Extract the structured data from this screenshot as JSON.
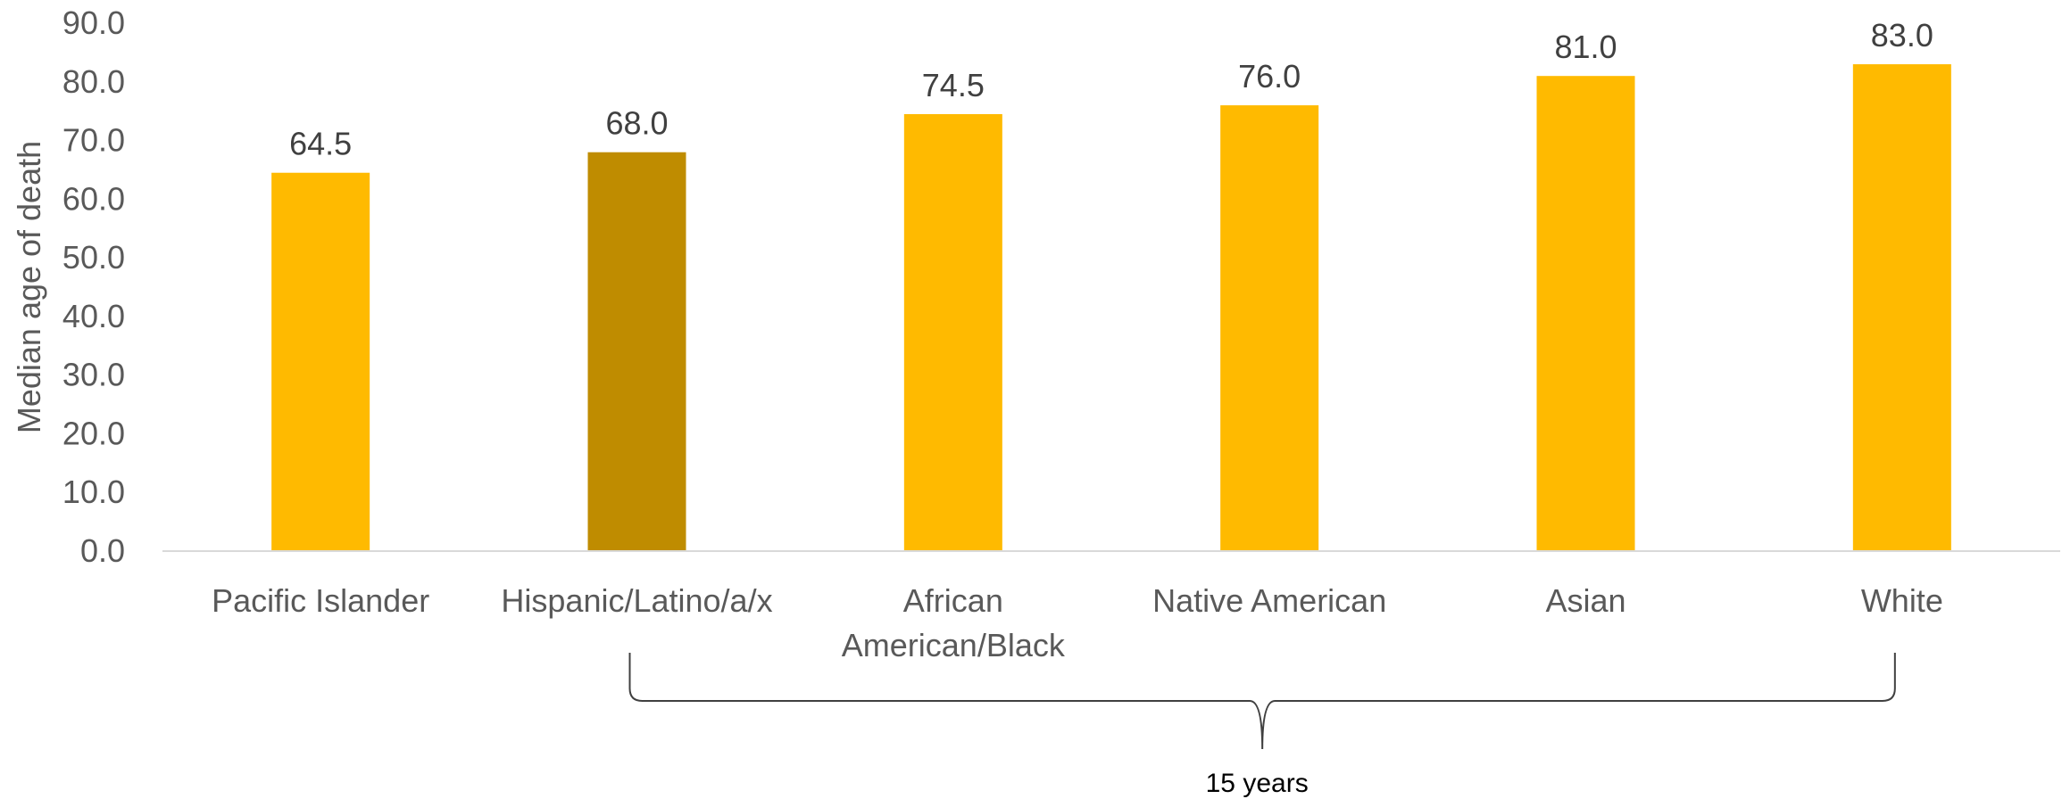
{
  "chart_data": {
    "type": "bar",
    "title": "",
    "xlabel": "",
    "ylabel": "Median age of death",
    "ylim": [
      0,
      90
    ],
    "y_ticks": [
      "0.0",
      "10.0",
      "20.0",
      "30.0",
      "40.0",
      "50.0",
      "60.0",
      "70.0",
      "80.0",
      "90.0"
    ],
    "categories": [
      [
        "Pacific Islander"
      ],
      [
        "Hispanic/Latino/a/x"
      ],
      [
        "African",
        "American/Black"
      ],
      [
        "Native American"
      ],
      [
        "Asian"
      ],
      [
        "White"
      ]
    ],
    "values": [
      64.5,
      68.0,
      74.5,
      76.0,
      81.0,
      83.0
    ],
    "data_labels": [
      "64.5",
      "68.0",
      "74.5",
      "76.0",
      "81.0",
      "83.0"
    ],
    "highlight_index": 1,
    "grid": false,
    "colors": {
      "bar": "#FFBA00",
      "highlight": "#BF8C00",
      "axis": "#D9D9D9",
      "bracket": "#404040"
    },
    "annotation": {
      "text": "15 years",
      "from_category": 1,
      "to_category": 5
    }
  }
}
